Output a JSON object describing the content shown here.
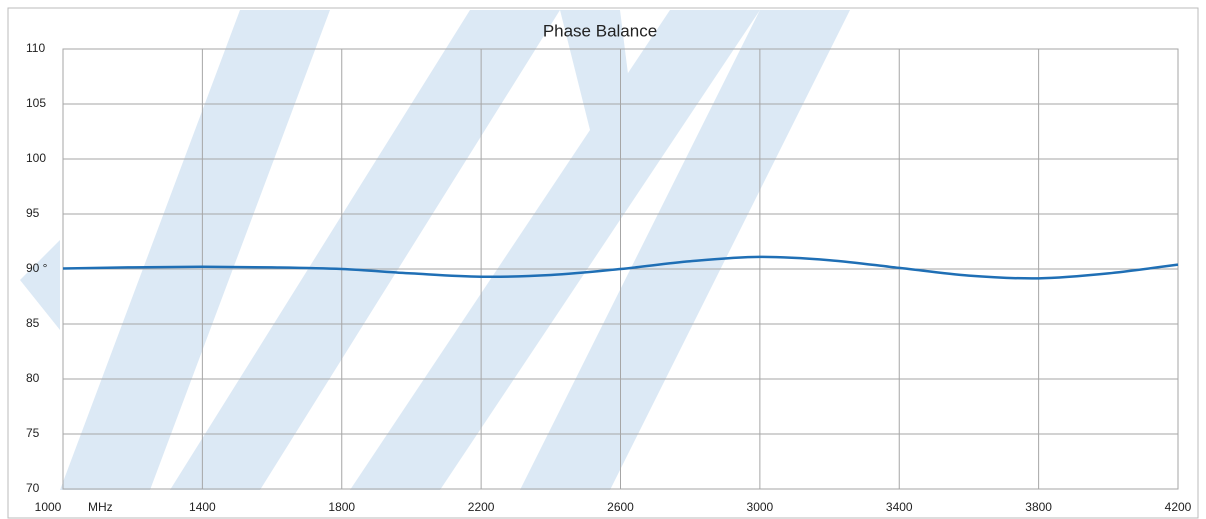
{
  "chart_data": {
    "type": "line",
    "title": "Phase Balance",
    "xlabel": "MHz",
    "x": [
      1000,
      1200,
      1400,
      1600,
      1800,
      2000,
      2200,
      2400,
      2600,
      2800,
      3000,
      3200,
      3400,
      3600,
      3800,
      4000,
      4200
    ],
    "series": [
      {
        "name": "Phase Balance",
        "color": "#1f6fb5",
        "values": [
          90.05,
          90.15,
          90.2,
          90.15,
          90.0,
          89.6,
          89.3,
          89.45,
          90.0,
          90.7,
          91.1,
          90.8,
          90.1,
          89.4,
          89.15,
          89.6,
          90.4
        ]
      }
    ],
    "xlim": [
      1000,
      4200
    ],
    "xticks": [
      1000,
      1400,
      1800,
      2200,
      2600,
      3000,
      3400,
      3800,
      4200
    ],
    "ylim": [
      70,
      110
    ],
    "yticks": [
      70,
      75,
      80,
      85,
      {
        "value": 90,
        "label": "90 °"
      },
      95,
      100,
      105,
      110
    ],
    "grid": true
  }
}
